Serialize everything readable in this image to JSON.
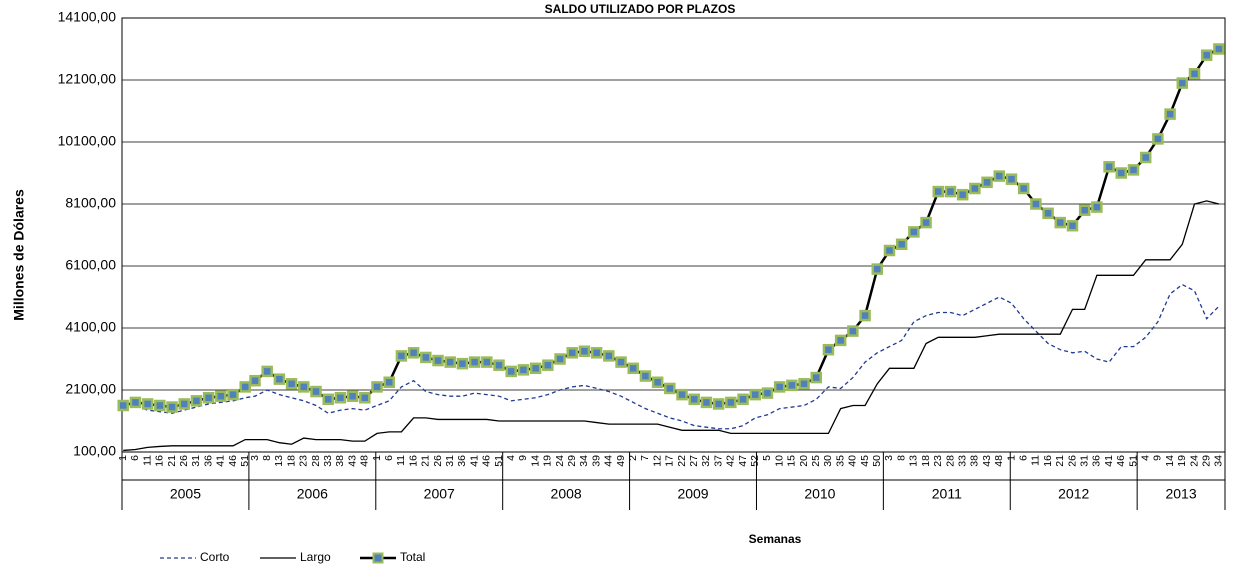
{
  "chart_data": {
    "type": "line",
    "title": "SALDO UTILIZADO POR PLAZOS",
    "y_label": "Millones de Dólares",
    "x_label": "Semanas",
    "categories": [
      {
        "year": "2005",
        "weeks": [
          1,
          6,
          11,
          16,
          21,
          26,
          31,
          36,
          41,
          46,
          51
        ]
      },
      {
        "year": "2006",
        "weeks": [
          3,
          8,
          13,
          18,
          23,
          28,
          33,
          38,
          43,
          48
        ]
      },
      {
        "year": "2007",
        "weeks": [
          1,
          6,
          11,
          16,
          21,
          26,
          31,
          36,
          41,
          46,
          51
        ]
      },
      {
        "year": "2008",
        "weeks": [
          4,
          9,
          14,
          19,
          24,
          29,
          34,
          39,
          44,
          49
        ]
      },
      {
        "year": "2009",
        "weeks": [
          2,
          7,
          12,
          17,
          22,
          27,
          32,
          37,
          42,
          47,
          52
        ]
      },
      {
        "year": "2010",
        "weeks": [
          5,
          10,
          15,
          20,
          25,
          30,
          35,
          40,
          45,
          50
        ]
      },
      {
        "year": "2011",
        "weeks": [
          3,
          8,
          13,
          18,
          23,
          28,
          33,
          38,
          43,
          48
        ]
      },
      {
        "year": "2012",
        "weeks": [
          1,
          6,
          11,
          16,
          21,
          26,
          31,
          36,
          41,
          46,
          51
        ]
      },
      {
        "year": "2013",
        "weeks": [
          4,
          9,
          14,
          19,
          24,
          29,
          34
        ]
      }
    ],
    "series": [
      {
        "name": "Corto",
        "color": "#1f3a93",
        "dash": true,
        "values": [
          [
            1550,
            1600,
            1450,
            1400,
            1350,
            1450,
            1550,
            1650,
            1700,
            1750,
            1850
          ],
          [
            1900,
            2100,
            1950,
            1850,
            1750,
            1600,
            1350,
            1450,
            1500,
            1450
          ],
          [
            1600,
            1750,
            2200,
            2400,
            2050,
            1950,
            1900,
            1900,
            2000,
            1950,
            1900
          ],
          [
            1750,
            1800,
            1850,
            1950,
            2100,
            2200,
            2250,
            2150,
            2050,
            1900
          ],
          [
            1700,
            1500,
            1350,
            1200,
            1100,
            950,
            900,
            850,
            850,
            950,
            1200
          ],
          [
            1300,
            1500,
            1550,
            1600,
            1800,
            2200,
            2150,
            2500,
            3000,
            3300
          ],
          [
            3500,
            3700,
            4300,
            4500,
            4600,
            4600,
            4500,
            4700,
            4900,
            5100
          ],
          [
            4900,
            4400,
            4000,
            3600,
            3400,
            3300,
            3350,
            3100,
            3000,
            3500,
            3500
          ],
          [
            3800,
            4300,
            5200,
            5500,
            5300,
            4400,
            4800
          ]
        ]
      },
      {
        "name": "Largo",
        "color": "#000000",
        "dash": false,
        "values": [
          [
            150,
            180,
            250,
            280,
            300,
            300,
            300,
            300,
            300,
            300,
            500
          ],
          [
            500,
            500,
            400,
            350,
            550,
            500,
            500,
            500,
            450,
            450
          ],
          [
            700,
            750,
            750,
            1200,
            1200,
            1150,
            1150,
            1150,
            1150,
            1150,
            1100
          ],
          [
            1100,
            1100,
            1100,
            1100,
            1100,
            1100,
            1100,
            1050,
            1000,
            1000
          ],
          [
            1000,
            1000,
            1000,
            900,
            800,
            800,
            800,
            800,
            700,
            700,
            700
          ],
          [
            700,
            700,
            700,
            700,
            700,
            700,
            1500,
            1600,
            1600,
            2300
          ],
          [
            2800,
            2800,
            2800,
            3600,
            3800,
            3800,
            3800,
            3800,
            3850,
            3900
          ],
          [
            3900,
            3900,
            3900,
            3900,
            3900,
            4700,
            4700,
            5800,
            5800,
            5800,
            5800
          ],
          [
            6300,
            6300,
            6300,
            6800,
            8100,
            8200,
            8100
          ]
        ]
      },
      {
        "name": "Total",
        "color": "#000000",
        "dash": false,
        "marker_color": "#4f81bd",
        "marker_edge": "#9bbb59",
        "values": [
          [
            1600,
            1700,
            1650,
            1600,
            1550,
            1650,
            1750,
            1850,
            1900,
            1950,
            2200
          ],
          [
            2400,
            2700,
            2450,
            2300,
            2200,
            2050,
            1800,
            1850,
            1900,
            1850
          ],
          [
            2200,
            2350,
            3200,
            3300,
            3150,
            3050,
            3000,
            2950,
            3000,
            3000,
            2900
          ],
          [
            2700,
            2750,
            2800,
            2900,
            3100,
            3300,
            3350,
            3300,
            3200,
            3000
          ],
          [
            2800,
            2550,
            2350,
            2150,
            1950,
            1800,
            1700,
            1650,
            1700,
            1800,
            1950
          ],
          [
            2000,
            2200,
            2250,
            2300,
            2500,
            3400,
            3700,
            4000,
            4500,
            6000
          ],
          [
            6600,
            6800,
            7200,
            7500,
            8500,
            8500,
            8400,
            8600,
            8800,
            9000
          ],
          [
            8900,
            8600,
            8100,
            7800,
            7500,
            7400,
            7900,
            8000,
            9300,
            9100,
            9200
          ],
          [
            9600,
            10200,
            11000,
            12000,
            12300,
            12900,
            13100
          ]
        ]
      }
    ],
    "ylim": [
      100,
      14100
    ],
    "yticks": [
      {
        "value": 100,
        "label": "100,00"
      },
      {
        "value": 2100,
        "label": "2100,00"
      },
      {
        "value": 4100,
        "label": "4100,00"
      },
      {
        "value": 6100,
        "label": "6100,00"
      },
      {
        "value": 8100,
        "label": "8100,00"
      },
      {
        "value": 10100,
        "label": "10100,00"
      },
      {
        "value": 12100,
        "label": "12100,00"
      },
      {
        "value": 14100,
        "label": "14100,00"
      }
    ],
    "grid": true
  }
}
